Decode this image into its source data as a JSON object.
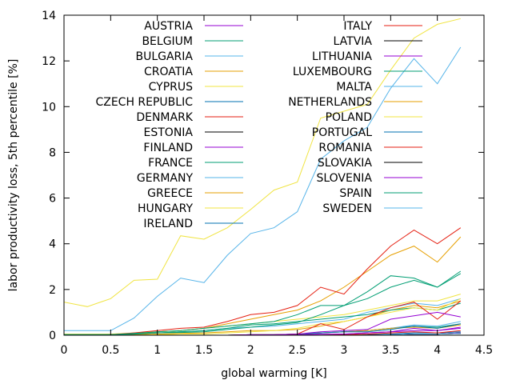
{
  "chart_data": {
    "type": "line",
    "xlabel": "global warming [K]",
    "ylabel": "labor productivity loss, 5th percentile [%]",
    "xlim": [
      0,
      4.5
    ],
    "ylim": [
      0,
      14
    ],
    "xticks": [
      0,
      0.5,
      1,
      1.5,
      2,
      2.5,
      3,
      3.5,
      4,
      4.5
    ],
    "yticks": [
      0,
      2,
      4,
      6,
      8,
      10,
      12,
      14
    ],
    "grid": false,
    "legend_position": "top, two columns",
    "x": [
      0,
      0.25,
      0.5,
      0.75,
      1,
      1.25,
      1.5,
      1.75,
      2,
      2.25,
      2.5,
      2.75,
      3,
      3.25,
      3.5,
      3.75,
      4,
      4.25
    ],
    "series": [
      {
        "name": "AUSTRIA",
        "color": "#9400d3",
        "values": [
          0,
          0,
          0,
          0,
          0,
          0,
          0,
          0,
          0,
          0,
          0,
          0.05,
          0.05,
          0.1,
          0.15,
          0.3,
          0.2,
          0.35
        ]
      },
      {
        "name": "BELGIUM",
        "color": "#009e73",
        "values": [
          0,
          0,
          0,
          0,
          0,
          0,
          0,
          0,
          0.02,
          0.02,
          0.05,
          0.1,
          0.15,
          0.2,
          0.3,
          0.4,
          0.35,
          0.5
        ]
      },
      {
        "name": "BULGARIA",
        "color": "#56b4e9",
        "values": [
          0.05,
          0.05,
          0.05,
          0.08,
          0.1,
          0.15,
          0.2,
          0.3,
          0.35,
          0.4,
          0.5,
          0.6,
          0.7,
          1.0,
          1.2,
          1.4,
          1.3,
          1.6
        ]
      },
      {
        "name": "CROATIA",
        "color": "#e69f00",
        "values": [
          0,
          0,
          0,
          0.02,
          0.05,
          0.08,
          0.1,
          0.15,
          0.2,
          0.2,
          0.25,
          0.4,
          0.6,
          0.8,
          1.1,
          1.3,
          1.2,
          1.5
        ]
      },
      {
        "name": "CYPRUS",
        "color": "#f0e442",
        "values": [
          0.05,
          0.05,
          0.05,
          0.1,
          0.15,
          0.2,
          0.3,
          0.4,
          0.5,
          0.6,
          0.7,
          0.8,
          0.9,
          1.1,
          1.3,
          1.5,
          1.5,
          1.8
        ]
      },
      {
        "name": "CZECH REPUBLIC",
        "color": "#0072b2",
        "values": [
          0,
          0,
          0,
          0,
          0,
          0,
          0,
          0,
          0,
          0,
          0,
          0,
          0,
          0.02,
          0.05,
          0.1,
          0.1,
          0.15
        ]
      },
      {
        "name": "DENMARK",
        "color": "#e51e10",
        "values": [
          0,
          0,
          0,
          0,
          0,
          0,
          0,
          0,
          0,
          0,
          0,
          0,
          0.02,
          0.05,
          0.1,
          0.15,
          0.1,
          0.2
        ]
      },
      {
        "name": "ESTONIA",
        "color": "#000000",
        "values": [
          0,
          0,
          0,
          0,
          0,
          0,
          0,
          0,
          0,
          0,
          0,
          0,
          0,
          0,
          0.02,
          0.05,
          0.05,
          0.08
        ]
      },
      {
        "name": "FINLAND",
        "color": "#9400d3",
        "values": [
          0,
          0,
          0,
          0,
          0,
          0,
          0,
          0,
          0,
          0,
          0.02,
          0.05,
          0.05,
          0.1,
          0.15,
          0.2,
          0.2,
          0.3
        ]
      },
      {
        "name": "FRANCE",
        "color": "#009e73",
        "values": [
          0.02,
          0.02,
          0.02,
          0.05,
          0.1,
          0.15,
          0.2,
          0.3,
          0.45,
          0.5,
          0.6,
          0.7,
          0.8,
          0.9,
          1.1,
          1.2,
          1.1,
          1.4
        ]
      },
      {
        "name": "GERMANY",
        "color": "#56b4e9",
        "values": [
          0,
          0,
          0,
          0,
          0,
          0,
          0,
          0,
          0.02,
          0.02,
          0.05,
          0.1,
          0.15,
          0.2,
          0.3,
          0.45,
          0.4,
          0.6
        ]
      },
      {
        "name": "GREECE",
        "color": "#e69f00",
        "values": [
          0,
          0,
          0.02,
          0.05,
          0.15,
          0.2,
          0.3,
          0.5,
          0.7,
          0.9,
          1.1,
          1.5,
          2.1,
          2.8,
          3.5,
          3.9,
          3.2,
          4.3
        ]
      },
      {
        "name": "HUNGARY",
        "color": "#f0e442",
        "values": [
          0,
          0,
          0,
          0,
          0.02,
          0.05,
          0.05,
          0.1,
          0.15,
          0.2,
          0.3,
          0.5,
          0.6,
          0.8,
          1.0,
          1.2,
          1.1,
          1.6
        ]
      },
      {
        "name": "IRELAND",
        "color": "#0072b2",
        "values": [
          0,
          0,
          0,
          0,
          0,
          0,
          0,
          0,
          0,
          0,
          0,
          0,
          0,
          0,
          0.02,
          0.05,
          0.05,
          0.1
        ]
      },
      {
        "name": "ITALY",
        "color": "#e51e10",
        "values": [
          0,
          0,
          0.02,
          0.1,
          0.2,
          0.3,
          0.35,
          0.6,
          0.9,
          1.0,
          1.3,
          2.1,
          1.8,
          2.9,
          3.9,
          4.6,
          4.0,
          4.7
        ]
      },
      {
        "name": "LATVIA",
        "color": "#000000",
        "values": [
          0,
          0,
          0,
          0,
          0,
          0,
          0,
          0,
          0,
          0,
          0,
          0,
          0,
          0,
          0.02,
          0.05,
          0.05,
          0.1
        ]
      },
      {
        "name": "LITHUANIA",
        "color": "#9400d3",
        "values": [
          0,
          0,
          0,
          0,
          0,
          0,
          0,
          0,
          0,
          0,
          0,
          0,
          0,
          0,
          0.02,
          0.05,
          0.05,
          0.1
        ]
      },
      {
        "name": "LUXEMBOURG",
        "color": "#009e73",
        "values": [
          0,
          0,
          0.02,
          0.08,
          0.15,
          0.2,
          0.3,
          0.4,
          0.5,
          0.6,
          0.9,
          1.3,
          1.3,
          1.9,
          2.6,
          2.5,
          2.1,
          2.8
        ]
      },
      {
        "name": "MALTA",
        "color": "#56b4e9",
        "values": [
          0.2,
          0.2,
          0.2,
          0.75,
          1.7,
          2.5,
          2.3,
          3.5,
          4.45,
          4.7,
          5.4,
          7.7,
          8.5,
          9.1,
          10.8,
          12.1,
          11.0,
          12.6
        ]
      },
      {
        "name": "NETHERLANDS",
        "color": "#e69f00",
        "values": [
          0,
          0,
          0,
          0,
          0,
          0,
          0,
          0,
          0.02,
          0.02,
          0.05,
          0.1,
          0.15,
          0.2,
          0.3,
          0.35,
          0.3,
          0.45
        ]
      },
      {
        "name": "POLAND",
        "color": "#f0e442",
        "values": [
          1.45,
          1.25,
          1.6,
          2.4,
          2.45,
          4.35,
          4.2,
          4.7,
          5.5,
          6.35,
          6.7,
          9.5,
          9.8,
          10.1,
          11.6,
          13.0,
          13.6,
          13.85
        ]
      },
      {
        "name": "PORTUGAL",
        "color": "#0072b2",
        "values": [
          0,
          0,
          0,
          0,
          0,
          0,
          0,
          0,
          0.02,
          0.02,
          0.05,
          0.1,
          0.15,
          0.15,
          0.25,
          0.4,
          0.3,
          0.5
        ]
      },
      {
        "name": "ROMANIA",
        "color": "#e51e10",
        "values": [
          0,
          0,
          0,
          0,
          0,
          0,
          0,
          0,
          0.02,
          0.02,
          0.05,
          0.5,
          0.25,
          0.8,
          1.2,
          1.45,
          0.7,
          1.5
        ]
      },
      {
        "name": "SLOVAKIA",
        "color": "#000000",
        "values": [
          0,
          0,
          0,
          0,
          0,
          0,
          0,
          0,
          0,
          0,
          0,
          0,
          0,
          0,
          0.02,
          0.05,
          0.05,
          0.08
        ]
      },
      {
        "name": "SLOVENIA",
        "color": "#9400d3",
        "values": [
          0,
          0,
          0,
          0,
          0,
          0,
          0,
          0,
          0.02,
          0.02,
          0.05,
          0.15,
          0.2,
          0.25,
          0.7,
          0.85,
          1.0,
          0.8
        ]
      },
      {
        "name": "SPAIN",
        "color": "#009e73",
        "values": [
          0.02,
          0.02,
          0.02,
          0.05,
          0.1,
          0.12,
          0.15,
          0.25,
          0.35,
          0.45,
          0.55,
          0.9,
          1.3,
          1.6,
          2.1,
          2.4,
          2.1,
          2.7
        ]
      },
      {
        "name": "SWEDEN",
        "color": "#56b4e9",
        "values": [
          0,
          0,
          0,
          0,
          0,
          0,
          0,
          0,
          0,
          0,
          0,
          0,
          0,
          0,
          0.02,
          0.05,
          0.05,
          0.08
        ]
      }
    ]
  }
}
